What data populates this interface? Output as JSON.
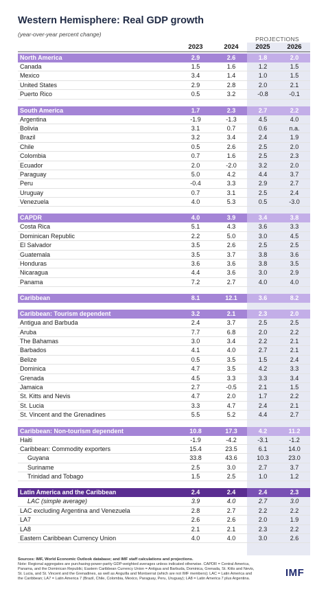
{
  "title": "Western Hemisphere: Real GDP growth",
  "subtitle": "(year-over-year percent change)",
  "projections_label": "PROJECTIONS",
  "years": [
    "2023",
    "2024",
    "2025",
    "2026"
  ],
  "sections": [
    {
      "header": {
        "label": "North America",
        "values": [
          "2.9",
          "2.6",
          "1.8",
          "2.0"
        ]
      },
      "rows": [
        {
          "label": "Canada",
          "values": [
            "1.5",
            "1.6",
            "1.2",
            "1.5"
          ]
        },
        {
          "label": "Mexico",
          "values": [
            "3.4",
            "1.4",
            "1.0",
            "1.5"
          ]
        },
        {
          "label": "United States",
          "values": [
            "2.9",
            "2.8",
            "2.0",
            "2.1"
          ]
        },
        {
          "label": "Puerto Rico",
          "values": [
            "0.5",
            "3.2",
            "-0.8",
            "-0.1"
          ]
        }
      ]
    },
    {
      "header": {
        "label": "South America",
        "values": [
          "1.7",
          "2.3",
          "2.7",
          "2.2"
        ]
      },
      "rows": [
        {
          "label": "Argentina",
          "values": [
            "-1.9",
            "-1.3",
            "4.5",
            "4.0"
          ]
        },
        {
          "label": "Bolivia",
          "values": [
            "3.1",
            "0.7",
            "0.6",
            "n.a."
          ]
        },
        {
          "label": "Brazil",
          "values": [
            "3.2",
            "3.4",
            "2.4",
            "1.9"
          ]
        },
        {
          "label": "Chile",
          "values": [
            "0.5",
            "2.6",
            "2.5",
            "2.0"
          ]
        },
        {
          "label": "Colombia",
          "values": [
            "0.7",
            "1.6",
            "2.5",
            "2.3"
          ]
        },
        {
          "label": "Ecuador",
          "values": [
            "2.0",
            "-2.0",
            "3.2",
            "2.0"
          ]
        },
        {
          "label": "Paraguay",
          "values": [
            "5.0",
            "4.2",
            "4.4",
            "3.7"
          ]
        },
        {
          "label": "Peru",
          "values": [
            "-0.4",
            "3.3",
            "2.9",
            "2.7"
          ]
        },
        {
          "label": "Uruguay",
          "values": [
            "0.7",
            "3.1",
            "2.5",
            "2.4"
          ]
        },
        {
          "label": "Venezuela",
          "values": [
            "4.0",
            "5.3",
            "0.5",
            "-3.0"
          ]
        }
      ]
    },
    {
      "header": {
        "label": "CAPDR",
        "values": [
          "4.0",
          "3.9",
          "3.4",
          "3.8"
        ]
      },
      "rows": [
        {
          "label": "Costa Rica",
          "values": [
            "5.1",
            "4.3",
            "3.6",
            "3.3"
          ]
        },
        {
          "label": "Dominican Republic",
          "values": [
            "2.2",
            "5.0",
            "3.0",
            "4.5"
          ]
        },
        {
          "label": "El Salvador",
          "values": [
            "3.5",
            "2.6",
            "2.5",
            "2.5"
          ]
        },
        {
          "label": "Guatemala",
          "values": [
            "3.5",
            "3.7",
            "3.8",
            "3.6"
          ]
        },
        {
          "label": "Honduras",
          "values": [
            "3.6",
            "3.6",
            "3.8",
            "3.5"
          ]
        },
        {
          "label": "Nicaragua",
          "values": [
            "4.4",
            "3.6",
            "3.0",
            "2.9"
          ]
        },
        {
          "label": "Panama",
          "values": [
            "7.2",
            "2.7",
            "4.0",
            "4.0"
          ]
        }
      ]
    },
    {
      "header": {
        "label": "Caribbean",
        "values": [
          "8.1",
          "12.1",
          "3.6",
          "8.2"
        ]
      },
      "rows": []
    },
    {
      "header": {
        "label": "Caribbean: Tourism dependent",
        "values": [
          "3.2",
          "2.1",
          "2.3",
          "2.0"
        ]
      },
      "rows": [
        {
          "label": "Antigua and Barbuda",
          "values": [
            "2.4",
            "3.7",
            "2.5",
            "2.5"
          ]
        },
        {
          "label": "Aruba",
          "values": [
            "7.7",
            "6.8",
            "2.0",
            "2.2"
          ]
        },
        {
          "label": "The Bahamas",
          "values": [
            "3.0",
            "3.4",
            "2.2",
            "2.1"
          ]
        },
        {
          "label": "Barbados",
          "values": [
            "4.1",
            "4.0",
            "2.7",
            "2.1"
          ]
        },
        {
          "label": "Belize",
          "values": [
            "0.5",
            "3.5",
            "1.5",
            "2.4"
          ]
        },
        {
          "label": "Dominica",
          "values": [
            "4.7",
            "3.5",
            "4.2",
            "3.3"
          ]
        },
        {
          "label": "Grenada",
          "values": [
            "4.5",
            "3.3",
            "3.3",
            "3.4"
          ]
        },
        {
          "label": "Jamaica",
          "values": [
            "2.7",
            "-0.5",
            "2.1",
            "1.5"
          ]
        },
        {
          "label": "St. Kitts and Nevis",
          "values": [
            "4.7",
            "2.0",
            "1.7",
            "2.2"
          ]
        },
        {
          "label": "St. Lucia",
          "values": [
            "3.3",
            "4.7",
            "2.4",
            "2.1"
          ]
        },
        {
          "label": "St. Vincent and the Grenadines",
          "values": [
            "5.5",
            "5.2",
            "4.4",
            "2.7"
          ]
        }
      ]
    },
    {
      "header": {
        "label": "Caribbean: Non-tourism dependent",
        "values": [
          "10.8",
          "17.3",
          "4.2",
          "11.2"
        ]
      },
      "rows": [
        {
          "label": "Haiti",
          "values": [
            "-1.9",
            "-4.2",
            "-3.1",
            "-1.2"
          ]
        },
        {
          "label": "Caribbean: Commodity exporters",
          "values": [
            "15.4",
            "23.5",
            "6.1",
            "14.0"
          ]
        },
        {
          "label": "Guyana",
          "values": [
            "33.8",
            "43.6",
            "10.3",
            "23.0"
          ],
          "indent": true
        },
        {
          "label": "Suriname",
          "values": [
            "2.5",
            "3.0",
            "2.7",
            "3.7"
          ],
          "indent": true
        },
        {
          "label": "Trinidad and Tobago",
          "values": [
            "1.5",
            "2.5",
            "1.0",
            "1.2"
          ],
          "indent": true
        }
      ]
    },
    {
      "header": {
        "label": "Latin America and the Caribbean",
        "values": [
          "2.4",
          "2.4",
          "2.4",
          "2.3"
        ],
        "dark": true
      },
      "rows": [
        {
          "label": "LAC (simple average)",
          "values": [
            "3.9",
            "4.0",
            "2.7",
            "3.0"
          ],
          "indent": true,
          "italic": true
        },
        {
          "label": "LAC excluding Argentina and Venezuela",
          "values": [
            "2.8",
            "2.7",
            "2.2",
            "2.2"
          ]
        },
        {
          "label": "LA7",
          "values": [
            "2.6",
            "2.6",
            "2.0",
            "1.9"
          ]
        },
        {
          "label": "LA8",
          "values": [
            "2.1",
            "2.1",
            "2.3",
            "2.2"
          ]
        },
        {
          "label": "Eastern Caribbean Currency Union",
          "values": [
            "4.0",
            "4.0",
            "3.0",
            "2.6"
          ]
        }
      ]
    }
  ],
  "sources": {
    "lead": "Sources: IMF, World Economic Outlook database; and IMF staff calculations and projections.",
    "note": "Note: Regional aggregates are purchasing-power-parity GDP-weighted averages unless indicated otherwise. CAPDR = Central America, Panama, and the Dominican Republic; Eastern Caribbean Currency Union = Antigua and Barbuda, Dominica, Grenada, St. Kitts and Nevis, St. Lucia, and St. Vincent and the Grenadines, as well as Anguilla and Montserrat (which are not IMF members); LAC = Latin America and the Caribbean; LA7 = Latin America 7 (Brazil, Chile, Colombia, Mexico, Paraguay, Peru, Uruguay); LA8 = Latin America 7 plus Argentina."
  },
  "logo": "IMF",
  "colors": {
    "section_header": "#a484d6",
    "section_header_dark": "#5a2d91",
    "projection_bg": "#e7e9f3",
    "title": "#1f2a44"
  }
}
